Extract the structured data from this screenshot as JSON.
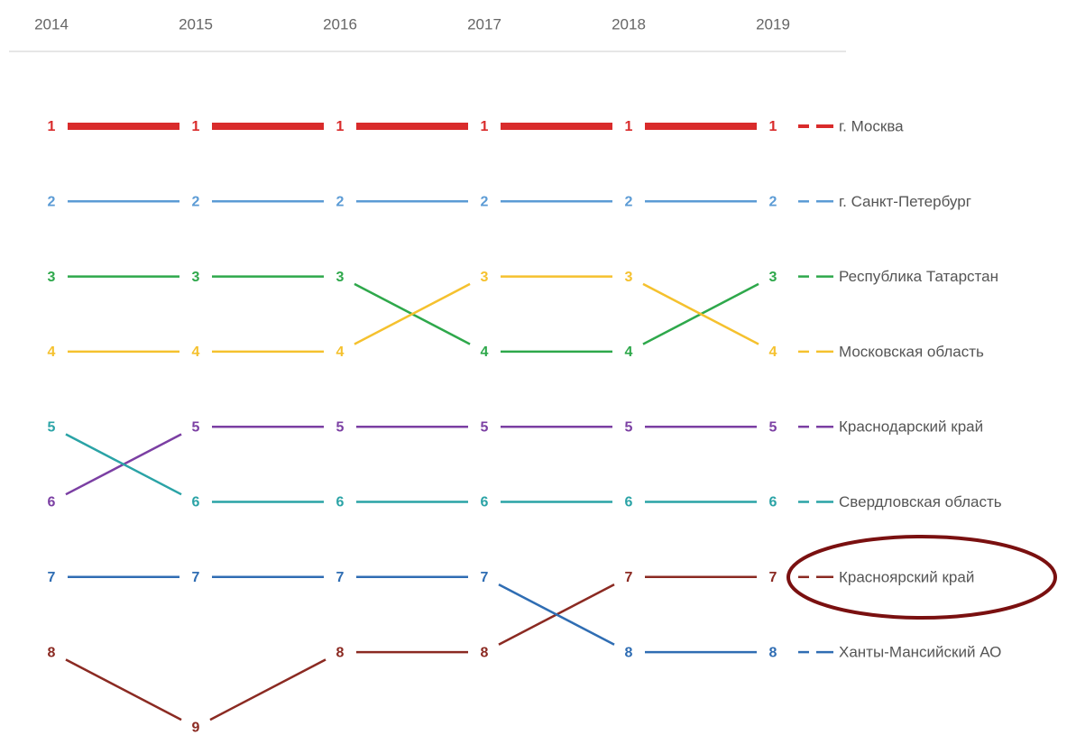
{
  "chart_data": {
    "type": "bump",
    "categories": [
      "2014",
      "2015",
      "2016",
      "2017",
      "2018",
      "2019"
    ],
    "series": [
      {
        "name": "г. Москва",
        "color": "#d92b2b",
        "line_width": 8,
        "values": [
          1,
          1,
          1,
          1,
          1,
          1
        ]
      },
      {
        "name": "г. Санкт-Петербург",
        "color": "#5b9bd5",
        "values": [
          2,
          2,
          2,
          2,
          2,
          2
        ]
      },
      {
        "name": "Республика Татарстан",
        "color": "#2ea84b",
        "values": [
          3,
          3,
          3,
          4,
          4,
          3
        ]
      },
      {
        "name": "Московская область",
        "color": "#f5c12e",
        "values": [
          4,
          4,
          4,
          3,
          3,
          4
        ]
      },
      {
        "name": "Краснодарский край",
        "color": "#7b3fa3",
        "values": [
          6,
          5,
          5,
          5,
          5,
          5
        ]
      },
      {
        "name": "Свердловская область",
        "color": "#2aa3a6",
        "values": [
          5,
          6,
          6,
          6,
          6,
          6
        ]
      },
      {
        "name": "Красноярский край",
        "color": "#8b2a22",
        "values": [
          8,
          9,
          8,
          8,
          7,
          7
        ]
      },
      {
        "name": "Ханты-Мансийский АО",
        "color": "#2f6db3",
        "values": [
          7,
          7,
          7,
          7,
          8,
          8
        ]
      }
    ]
  }
}
